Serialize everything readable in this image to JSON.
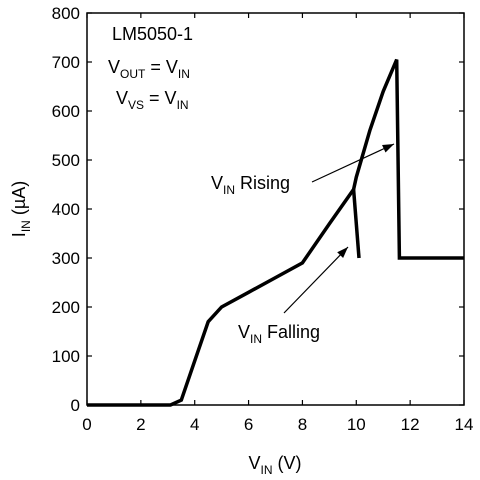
{
  "chart_data": {
    "type": "line",
    "annotations": {
      "part": "LM5050-1",
      "cond1": {
        "a": "V",
        "a_sub": "OUT",
        "eq": " = V",
        "b_sub": "IN"
      },
      "cond2": {
        "a": "V",
        "a_sub": "VS",
        "eq": " = V",
        "b_sub": "IN"
      },
      "rising": {
        "main": "V",
        "sub": "IN",
        "rest": " Rising"
      },
      "falling": {
        "main": "V",
        "sub": "IN",
        "rest": " Falling"
      }
    },
    "xlabel": {
      "main": "V",
      "sub": "IN",
      "rest": " (V)"
    },
    "ylabel": {
      "main": "I",
      "sub": "IN",
      "rest": " (µA)"
    },
    "xlim": [
      0,
      14
    ],
    "ylim": [
      0,
      800
    ],
    "xticks": [
      0,
      2,
      4,
      6,
      8,
      10,
      12,
      14
    ],
    "yticks": [
      0,
      100,
      200,
      300,
      400,
      500,
      600,
      700,
      800
    ],
    "grid": false,
    "legend": "none",
    "series": [
      {
        "x": [
          0,
          3.1,
          3.5,
          4.0,
          4.5,
          5.0,
          6.0,
          7.0,
          8.0,
          9.0,
          9.9,
          10.0,
          10.5,
          11.0,
          11.5,
          11.6,
          12.0,
          14.0
        ],
        "y": [
          0,
          0,
          10,
          90,
          170,
          200,
          230,
          260,
          290,
          370,
          440,
          465,
          560,
          640,
          705,
          300,
          300,
          300
        ]
      },
      {
        "x": [
          9.9,
          10.1
        ],
        "y": [
          440,
          300
        ]
      }
    ]
  }
}
